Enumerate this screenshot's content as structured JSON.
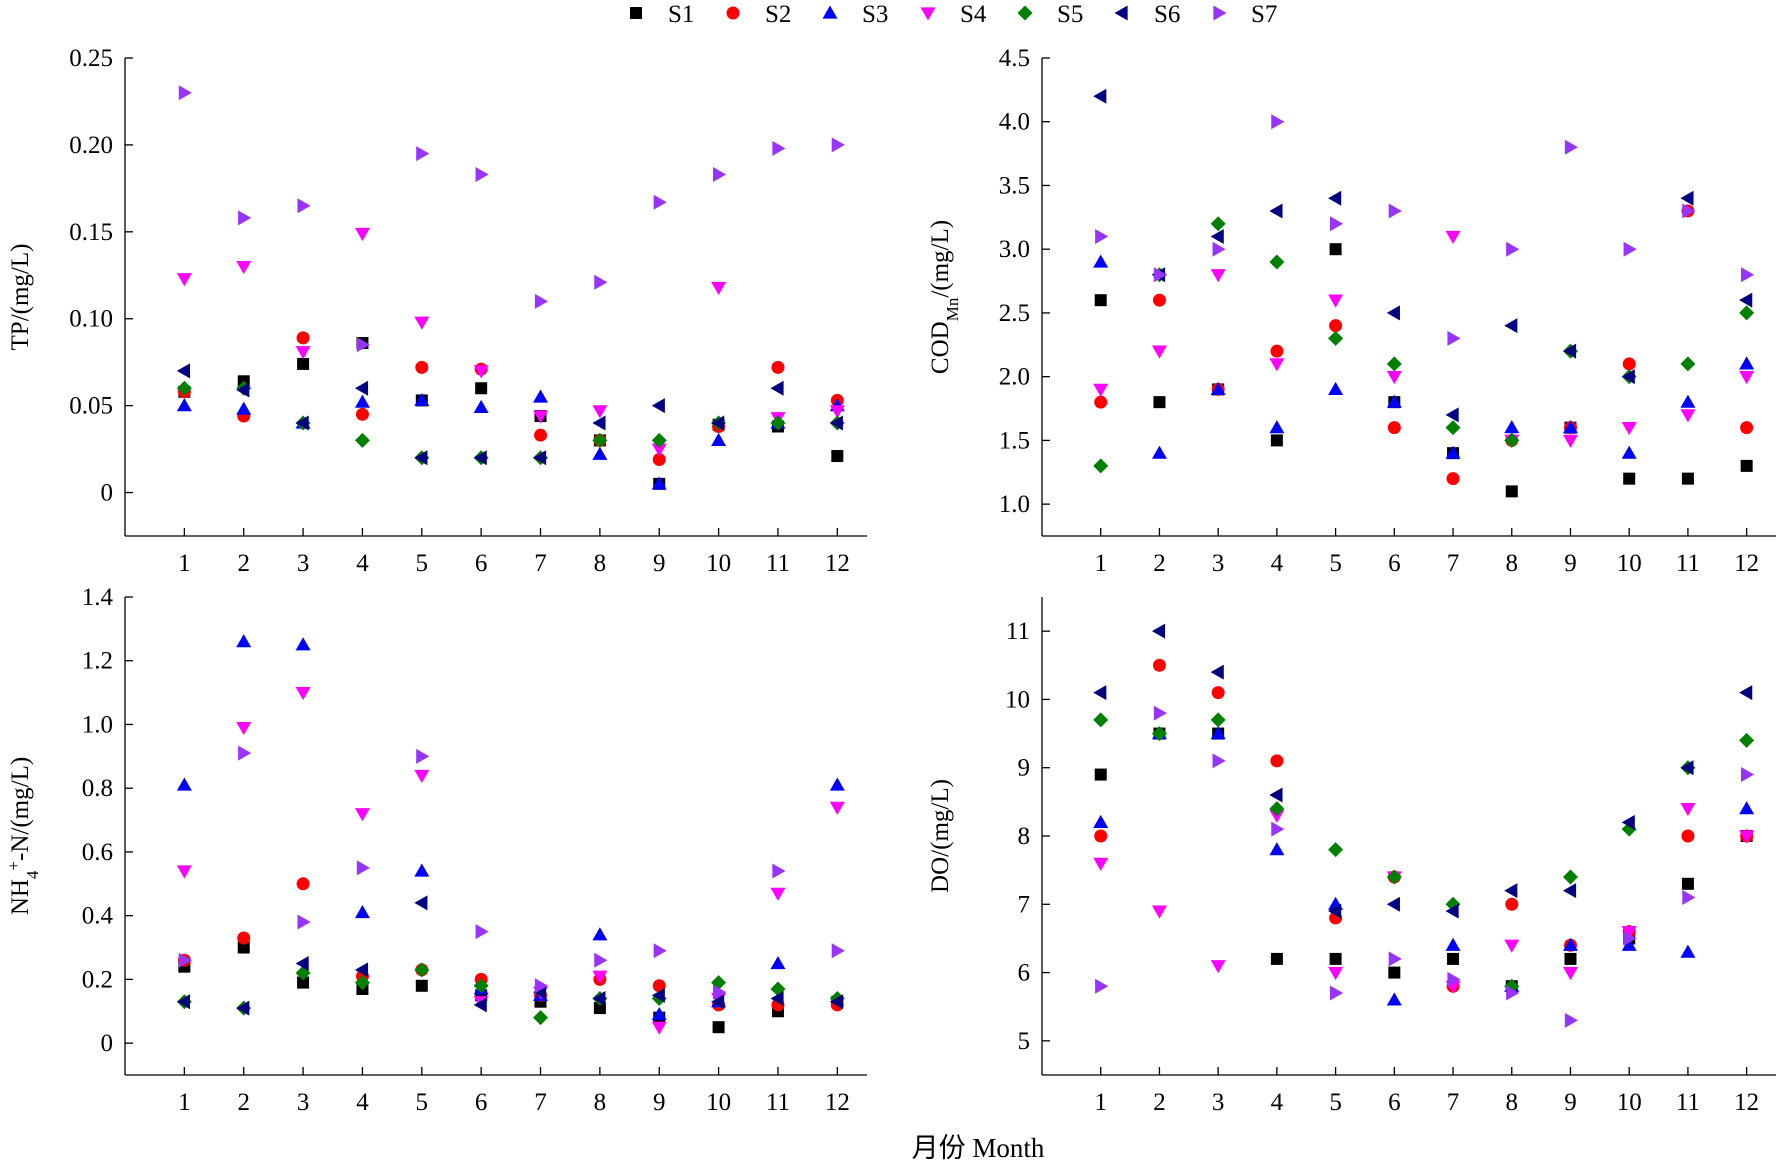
{
  "figure": {
    "xlabel": "月份 Month"
  },
  "styles": {
    "S1": {
      "color": "#000000",
      "marker": "square"
    },
    "S2": {
      "color": "#ff0000",
      "marker": "circle"
    },
    "S3": {
      "color": "#0000ff",
      "marker": "triangle-up"
    },
    "S4": {
      "color": "#ff00ff",
      "marker": "triangle-down"
    },
    "S5": {
      "color": "#008000",
      "marker": "diamond"
    },
    "S6": {
      "color": "#000080",
      "marker": "triangle-left"
    },
    "S7": {
      "color": "#9933ff",
      "marker": "triangle-right"
    }
  },
  "legend": {
    "position": "top-center",
    "entries": [
      "S1",
      "S2",
      "S3",
      "S4",
      "S5",
      "S6",
      "S7"
    ]
  },
  "chart_data": [
    {
      "id": "tp",
      "type": "scatter",
      "title": "",
      "ylabel_parts": [
        {
          "t": "TP/(mg/L)"
        }
      ],
      "x": [
        1,
        2,
        3,
        4,
        5,
        6,
        7,
        8,
        9,
        10,
        11,
        12
      ],
      "xlim": [
        0,
        12.5
      ],
      "ylim": [
        -0.025,
        0.25
      ],
      "yticks": [
        0,
        0.05,
        0.1,
        0.15,
        0.2,
        0.25
      ],
      "ytick_labels": [
        "0",
        "0.05",
        "0.10",
        "0.15",
        "0.20",
        "0.25"
      ],
      "series": [
        {
          "name": "S1",
          "values": [
            0.058,
            0.064,
            0.074,
            0.086,
            0.053,
            0.06,
            0.044,
            0.03,
            0.005,
            0.039,
            0.038,
            0.021
          ]
        },
        {
          "name": "S2",
          "values": [
            0.058,
            0.044,
            0.089,
            0.045,
            0.072,
            0.071,
            0.033,
            0.03,
            0.019,
            0.038,
            0.072,
            0.053
          ]
        },
        {
          "name": "S3",
          "values": [
            0.05,
            0.048,
            0.04,
            0.052,
            0.053,
            0.049,
            0.055,
            0.022,
            0.005,
            0.03,
            0.04,
            0.05
          ]
        },
        {
          "name": "S4",
          "values": [
            0.123,
            0.13,
            0.081,
            0.149,
            0.098,
            0.07,
            0.044,
            0.047,
            0.025,
            0.118,
            0.043,
            0.047
          ]
        },
        {
          "name": "S5",
          "values": [
            0.06,
            0.06,
            0.04,
            0.03,
            0.02,
            0.02,
            0.02,
            0.03,
            0.03,
            0.04,
            0.04,
            0.04
          ]
        },
        {
          "name": "S6",
          "values": [
            0.07,
            0.059,
            0.04,
            0.06,
            0.02,
            0.02,
            0.02,
            0.04,
            0.05,
            0.04,
            0.06,
            0.04
          ]
        },
        {
          "name": "S7",
          "values": [
            0.23,
            0.158,
            0.165,
            0.085,
            0.195,
            0.183,
            0.11,
            0.121,
            0.167,
            0.183,
            0.198,
            0.2
          ]
        }
      ]
    },
    {
      "id": "codmn",
      "type": "scatter",
      "title": "",
      "ylabel_parts": [
        {
          "t": "COD"
        },
        {
          "t": "Mn",
          "sub": true
        },
        {
          "t": "/(mg/L)"
        }
      ],
      "x": [
        1,
        2,
        3,
        4,
        5,
        6,
        7,
        8,
        9,
        10,
        11,
        12
      ],
      "xlim": [
        0,
        12.5
      ],
      "ylim": [
        0.75,
        4.5
      ],
      "yticks": [
        1.0,
        1.5,
        2.0,
        2.5,
        3.0,
        3.5,
        4.0,
        4.5
      ],
      "ytick_labels": [
        "1.0",
        "1.5",
        "2.0",
        "2.5",
        "3.0",
        "3.5",
        "4.0",
        "4.5"
      ],
      "series": [
        {
          "name": "S1",
          "values": [
            2.6,
            1.8,
            1.9,
            1.5,
            3.0,
            1.8,
            1.4,
            1.1,
            1.6,
            1.2,
            1.2,
            1.3
          ]
        },
        {
          "name": "S2",
          "values": [
            1.8,
            2.6,
            1.9,
            2.2,
            2.4,
            1.6,
            1.2,
            1.5,
            1.6,
            2.1,
            3.3,
            1.6
          ]
        },
        {
          "name": "S3",
          "values": [
            2.9,
            1.4,
            1.9,
            1.6,
            1.9,
            1.8,
            1.4,
            1.6,
            1.6,
            1.4,
            1.8,
            2.1
          ]
        },
        {
          "name": "S4",
          "values": [
            1.9,
            2.2,
            2.8,
            2.1,
            2.6,
            2.0,
            3.1,
            1.5,
            1.5,
            1.6,
            1.7,
            2.0
          ]
        },
        {
          "name": "S5",
          "values": [
            1.3,
            2.8,
            3.2,
            2.9,
            2.3,
            2.1,
            1.6,
            1.5,
            2.2,
            2.0,
            2.1,
            2.5
          ]
        },
        {
          "name": "S6",
          "values": [
            4.2,
            2.8,
            3.1,
            3.3,
            3.4,
            2.5,
            1.7,
            2.4,
            2.2,
            2.0,
            3.4,
            2.6
          ]
        },
        {
          "name": "S7",
          "values": [
            3.1,
            2.8,
            3.0,
            4.0,
            3.2,
            3.3,
            2.3,
            3.0,
            3.8,
            3.0,
            3.3,
            2.8
          ]
        }
      ]
    },
    {
      "id": "nh4",
      "type": "scatter",
      "title": "",
      "ylabel_parts": [
        {
          "t": "NH"
        },
        {
          "t": "4",
          "sub": true
        },
        {
          "t": "+",
          "sup": true
        },
        {
          "t": "-N/(mg/L)"
        }
      ],
      "x": [
        1,
        2,
        3,
        4,
        5,
        6,
        7,
        8,
        9,
        10,
        11,
        12
      ],
      "xlim": [
        0,
        12.5
      ],
      "ylim": [
        -0.1,
        1.4
      ],
      "yticks": [
        0,
        0.2,
        0.4,
        0.6,
        0.8,
        1.0,
        1.2,
        1.4
      ],
      "ytick_labels": [
        "0",
        "0.2",
        "0.4",
        "0.6",
        "0.8",
        "1.0",
        "1.2",
        "1.4"
      ],
      "series": [
        {
          "name": "S1",
          "values": [
            0.24,
            0.3,
            0.19,
            0.17,
            0.18,
            0.15,
            0.13,
            0.11,
            0.08,
            0.05,
            0.1,
            0.13
          ]
        },
        {
          "name": "S2",
          "values": [
            0.26,
            0.33,
            0.5,
            0.21,
            0.23,
            0.2,
            0.15,
            0.2,
            0.18,
            0.12,
            0.12,
            0.12
          ]
        },
        {
          "name": "S3",
          "values": [
            0.81,
            1.26,
            1.25,
            0.41,
            0.54,
            0.17,
            0.15,
            0.34,
            0.09,
            0.13,
            0.25,
            0.81
          ]
        },
        {
          "name": "S4",
          "values": [
            0.54,
            0.99,
            1.1,
            0.72,
            0.84,
            0.13,
            0.16,
            0.21,
            0.05,
            0.14,
            0.47,
            0.74
          ]
        },
        {
          "name": "S5",
          "values": [
            0.13,
            0.11,
            0.22,
            0.19,
            0.23,
            0.18,
            0.08,
            0.14,
            0.14,
            0.19,
            0.17,
            0.14
          ]
        },
        {
          "name": "S6",
          "values": [
            0.13,
            0.11,
            0.25,
            0.23,
            0.44,
            0.12,
            0.16,
            0.14,
            0.15,
            0.13,
            0.14,
            0.13
          ]
        },
        {
          "name": "S7",
          "values": [
            0.26,
            0.91,
            0.38,
            0.55,
            0.9,
            0.35,
            0.18,
            0.26,
            0.29,
            0.16,
            0.54,
            0.29
          ]
        }
      ]
    },
    {
      "id": "do",
      "type": "scatter",
      "title": "",
      "ylabel_parts": [
        {
          "t": "DO/(mg/L)"
        }
      ],
      "x": [
        1,
        2,
        3,
        4,
        5,
        6,
        7,
        8,
        9,
        10,
        11,
        12
      ],
      "xlim": [
        0,
        12.5
      ],
      "ylim": [
        4.5,
        11.5
      ],
      "yticks": [
        5,
        6,
        7,
        8,
        9,
        10,
        11
      ],
      "ytick_labels": [
        "5",
        "6",
        "7",
        "8",
        "9",
        "10",
        "11"
      ],
      "series": [
        {
          "name": "S1",
          "values": [
            8.9,
            9.5,
            9.5,
            6.2,
            6.2,
            6.0,
            6.2,
            5.8,
            6.2,
            6.5,
            7.3,
            8.0
          ]
        },
        {
          "name": "S2",
          "values": [
            8.0,
            10.5,
            10.1,
            9.1,
            6.8,
            7.4,
            5.8,
            7.0,
            6.4,
            6.6,
            8.0,
            8.0
          ]
        },
        {
          "name": "S3",
          "values": [
            8.2,
            9.5,
            9.5,
            7.8,
            7.0,
            5.6,
            6.4,
            5.8,
            6.4,
            6.4,
            6.3,
            8.4
          ]
        },
        {
          "name": "S4",
          "values": [
            7.6,
            6.9,
            6.1,
            8.3,
            6.0,
            7.4,
            5.8,
            6.4,
            6.0,
            6.6,
            8.4,
            8.0
          ]
        },
        {
          "name": "S5",
          "values": [
            9.7,
            9.5,
            9.7,
            8.4,
            7.8,
            7.4,
            7.0,
            5.8,
            7.4,
            8.1,
            9.0,
            9.4
          ]
        },
        {
          "name": "S6",
          "values": [
            10.1,
            11.0,
            10.4,
            8.6,
            6.9,
            7.0,
            6.9,
            7.2,
            7.2,
            8.2,
            9.0,
            10.1
          ]
        },
        {
          "name": "S7",
          "values": [
            5.8,
            9.8,
            9.1,
            8.1,
            5.7,
            6.2,
            5.9,
            5.7,
            5.3,
            6.5,
            7.1,
            8.9
          ]
        }
      ]
    }
  ]
}
